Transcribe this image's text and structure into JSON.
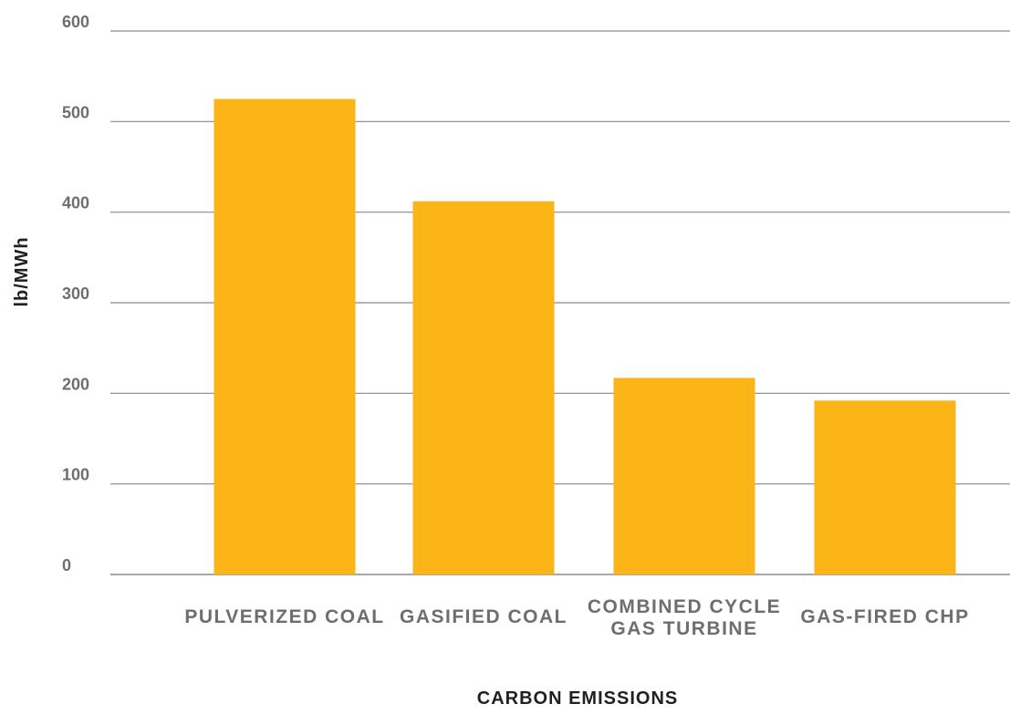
{
  "chart_data": {
    "type": "bar",
    "title": "",
    "xlabel": "CARBON EMISSIONS",
    "ylabel": "lb/MWh",
    "ylim": [
      0,
      600
    ],
    "yticks": [
      "0",
      "100",
      "200",
      "300",
      "400",
      "500",
      "600"
    ],
    "grid": true,
    "legend": "none",
    "categories": [
      [
        "PULVERIZED COAL"
      ],
      [
        "GASIFIED COAL"
      ],
      [
        "COMBINED CYCLE",
        "GAS TURBINE"
      ],
      [
        "GAS-FIRED CHP"
      ]
    ],
    "values": [
      525,
      412,
      217,
      192
    ],
    "colors": {
      "bar": "#FBB517",
      "grid": "#8a8a8a",
      "text": "#6d6e71",
      "title": "#231f20"
    }
  }
}
